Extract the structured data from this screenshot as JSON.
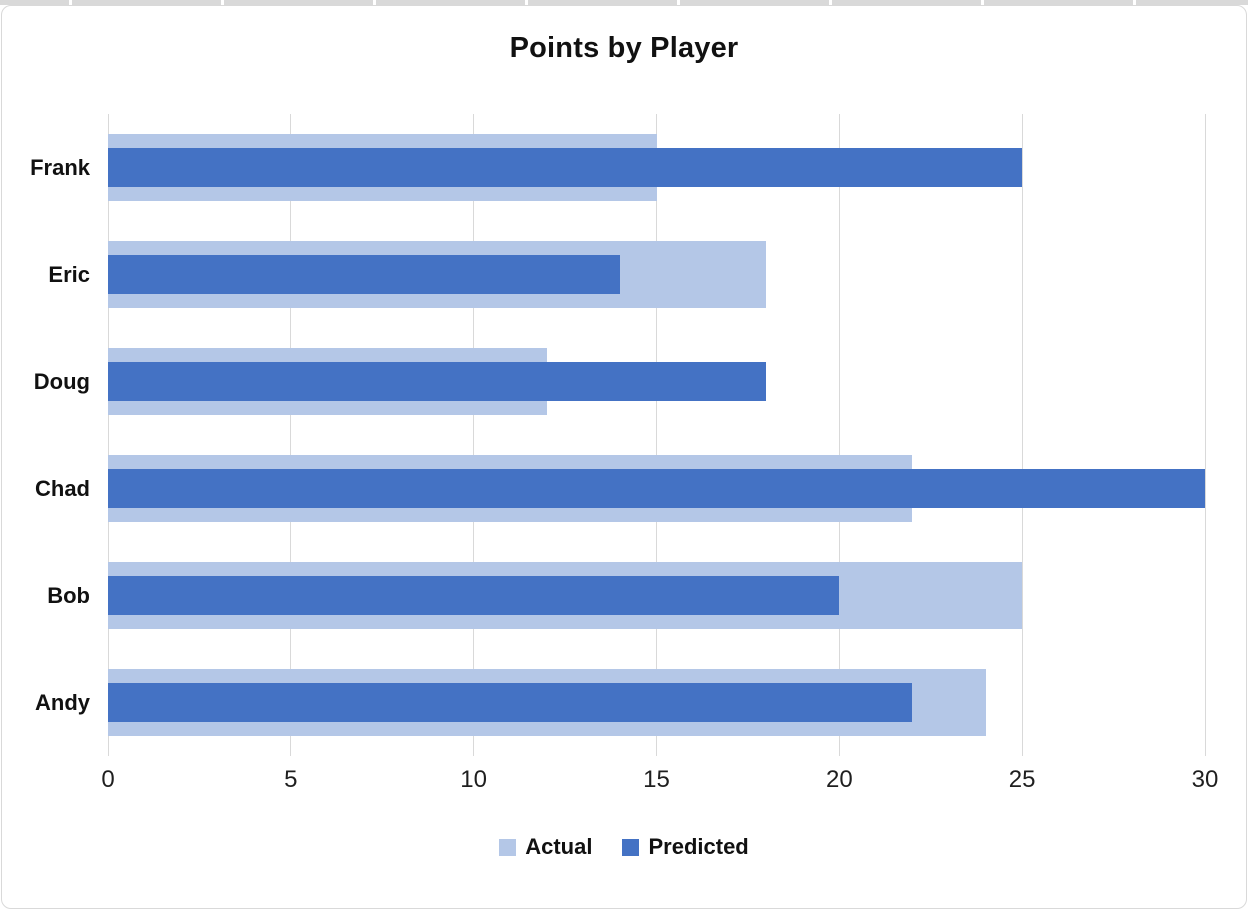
{
  "chart_data": {
    "type": "bar",
    "orientation": "horizontal",
    "title": "Points by Player",
    "categories": [
      "Frank",
      "Eric",
      "Doug",
      "Chad",
      "Bob",
      "Andy"
    ],
    "series": [
      {
        "name": "Actual",
        "color": "#b4c7e7",
        "values": [
          15,
          18,
          12,
          22,
          25,
          24
        ]
      },
      {
        "name": "Predicted",
        "color": "#4472c4",
        "values": [
          25,
          14,
          18,
          30,
          20,
          22
        ]
      }
    ],
    "xlim": [
      0,
      30
    ],
    "xticks": [
      0,
      5,
      10,
      15,
      20,
      25,
      30
    ],
    "grid": "vertical-gridlines-on",
    "gridline_color": "#d9d9d9",
    "legend_position": "bottom"
  }
}
